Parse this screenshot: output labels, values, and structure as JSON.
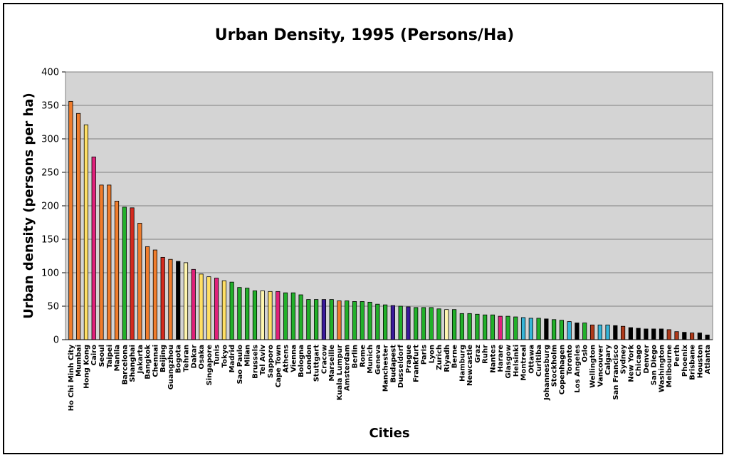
{
  "chart_data": {
    "type": "bar",
    "title": "Urban Density, 1995 (Persons/Ha)",
    "xlabel": "Cities",
    "ylabel": "Urban density (persons per ha)",
    "ylim": [
      0,
      400
    ],
    "yticks": [
      0,
      50,
      100,
      150,
      200,
      250,
      300,
      350,
      400
    ],
    "grid": true,
    "legend": "none",
    "colors": {
      "plot_background": "#d4d4d4",
      "gridline": "#7f7f7f",
      "orange": "#f07d2d",
      "yellow": "#ffe066",
      "magenta": "#e0207a",
      "green": "#22b02a",
      "red": "#d42a1e",
      "black": "#000000",
      "pale_yellow": "#fff6b0",
      "purple": "#3a1a9a",
      "cyan": "#36b5d8",
      "brown": "#b03a1a"
    },
    "categories": [
      "Ho Chi Minh City",
      "Mumbai",
      "Hong Kong",
      "Cairo",
      "Seoul",
      "Taipei",
      "Manila",
      "Barcelona",
      "Shanghai",
      "Jakarta",
      "Bangkok",
      "Chennai",
      "Beijing",
      "Guangzhou",
      "Bogota",
      "Tehran",
      "Dakar",
      "Osaka",
      "Singapore",
      "Tunis",
      "Tokyo",
      "Madrid",
      "Sao Paulo",
      "Milan",
      "Brussels",
      "Tel Aviv",
      "Sapporo",
      "Cape Town",
      "Athens",
      "Vienna",
      "Bologna",
      "London",
      "Stuttgart",
      "Cracow",
      "Marseille",
      "Kuala Lumpur",
      "Amsterdam",
      "Berlin",
      "Rome",
      "Munich",
      "Geneva",
      "Manchester",
      "Budapest",
      "Dusseldorf",
      "Prague",
      "Frankfurt",
      "Paris",
      "Lyon",
      "Zurich",
      "Riyadh",
      "Berne",
      "Hamburg",
      "Newcastle",
      "Graz",
      "Ruhr",
      "Nantes",
      "Harare",
      "Glasgow",
      "Helsinki",
      "Montreal",
      "Ottawa",
      "Curitiba",
      "Johannesburg",
      "Stockholm",
      "Copenhagen",
      "Toronto",
      "Los Angeles",
      "Oslo",
      "Wellington",
      "Vancouver",
      "Calgary",
      "San Francisco",
      "Sydney",
      "New York",
      "Chicago",
      "Denver",
      "San Diego",
      "Washington",
      "Melbourne",
      "Perth",
      "Phoenix",
      "Brisbane",
      "Houston",
      "Atlanta"
    ],
    "values": [
      356,
      338,
      321,
      273,
      231,
      231,
      207,
      198,
      197,
      174,
      139,
      134,
      123,
      120,
      117,
      115,
      105,
      98,
      94,
      92,
      88,
      86,
      78,
      77,
      73,
      73,
      72,
      72,
      70,
      70,
      67,
      60,
      60,
      60,
      60,
      58,
      58,
      57,
      57,
      56,
      53,
      52,
      51,
      50,
      49,
      48,
      48,
      48,
      46,
      45,
      45,
      39,
      39,
      38,
      37,
      37,
      35,
      35,
      34,
      33,
      32,
      32,
      31,
      30,
      29,
      27,
      25,
      25,
      22,
      22,
      22,
      21,
      20,
      18,
      17,
      16,
      16,
      16,
      15,
      12,
      11,
      10,
      10,
      7
    ],
    "bar_colors": [
      "orange",
      "orange",
      "yellow",
      "magenta",
      "orange",
      "orange",
      "orange",
      "green",
      "red",
      "orange",
      "orange",
      "orange",
      "red",
      "orange",
      "black",
      "pale_yellow",
      "magenta",
      "yellow",
      "yellow",
      "magenta",
      "yellow",
      "green",
      "green",
      "green",
      "green",
      "pale_yellow",
      "yellow",
      "magenta",
      "green",
      "green",
      "green",
      "green",
      "green",
      "purple",
      "green",
      "orange",
      "green",
      "green",
      "green",
      "green",
      "green",
      "green",
      "purple",
      "green",
      "purple",
      "green",
      "green",
      "green",
      "green",
      "pale_yellow",
      "green",
      "green",
      "green",
      "green",
      "green",
      "green",
      "magenta",
      "green",
      "green",
      "cyan",
      "cyan",
      "green",
      "black",
      "green",
      "green",
      "cyan",
      "black",
      "green",
      "brown",
      "cyan",
      "cyan",
      "black",
      "brown",
      "black",
      "black",
      "black",
      "black",
      "black",
      "brown",
      "brown",
      "black",
      "brown",
      "black",
      "black"
    ]
  }
}
